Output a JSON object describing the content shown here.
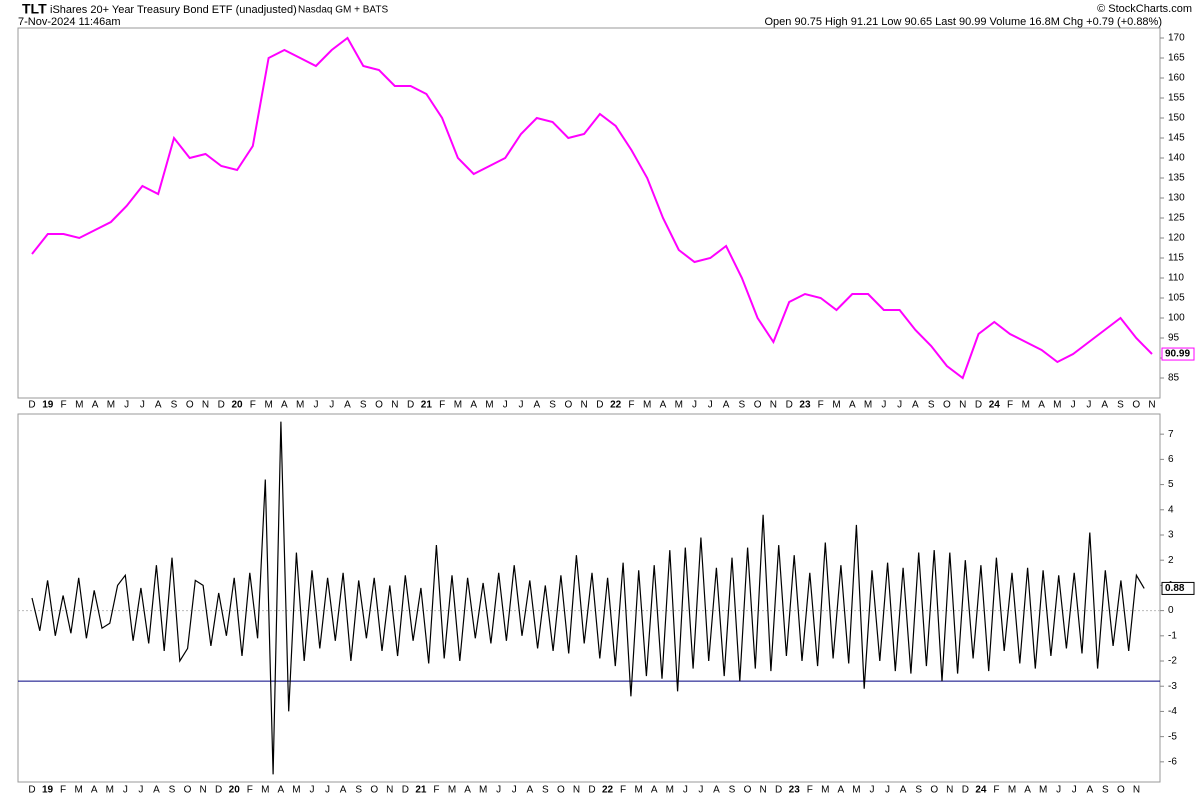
{
  "header": {
    "ticker": "TLT",
    "description": "iShares 20+ Year Treasury Bond ETF (unadjusted)",
    "exchange": "Nasdaq GM + BATS",
    "datetime": "7-Nov-2024 11:46am",
    "copyright": "© StockCharts.com",
    "quote": "Open 90.75  High 91.21  Low 90.65  Last 90.99  Volume 16.8M  Chg +0.79 (+0.88%)",
    "last": "90.99"
  },
  "chart_data": [
    {
      "type": "line",
      "color": "#ff00ff",
      "categories": [
        "D",
        "19",
        "F",
        "M",
        "A",
        "M",
        "J",
        "J",
        "A",
        "S",
        "O",
        "N",
        "D",
        "20",
        "F",
        "M",
        "A",
        "M",
        "J",
        "J",
        "A",
        "S",
        "O",
        "N",
        "D",
        "21",
        "F",
        "M",
        "A",
        "M",
        "J",
        "J",
        "A",
        "S",
        "O",
        "N",
        "D",
        "22",
        "F",
        "M",
        "A",
        "M",
        "J",
        "J",
        "A",
        "S",
        "O",
        "N",
        "D",
        "23",
        "F",
        "M",
        "A",
        "M",
        "J",
        "J",
        "A",
        "S",
        "O",
        "N",
        "D",
        "24",
        "F",
        "M",
        "A",
        "M",
        "J",
        "J",
        "A",
        "S",
        "O",
        "N"
      ],
      "values": [
        116,
        121,
        121,
        120,
        122,
        124,
        128,
        133,
        131,
        145,
        140,
        141,
        138,
        137,
        143,
        165,
        167,
        165,
        163,
        167,
        170,
        163,
        162,
        158,
        158,
        156,
        150,
        140,
        136,
        138,
        140,
        146,
        150,
        149,
        145,
        146,
        151,
        148,
        142,
        135,
        125,
        117,
        114,
        115,
        118,
        110,
        100,
        94,
        104,
        106,
        105,
        102,
        106,
        106,
        102,
        102,
        97,
        93,
        88,
        85,
        96,
        99,
        96,
        94,
        92,
        89,
        91,
        94,
        97,
        100,
        95,
        90.99
      ],
      "ylim": [
        80,
        172.5
      ],
      "yticks": [
        85,
        90,
        95,
        100,
        105,
        110,
        115,
        120,
        125,
        130,
        135,
        140,
        145,
        150,
        155,
        160,
        165,
        170
      ]
    },
    {
      "type": "line",
      "color": "#000000",
      "reference_line": -2.8,
      "reference_color": "#000080",
      "last_label": "0.88",
      "categories": [
        "D",
        null,
        "19",
        null,
        "F",
        null,
        "M",
        null,
        "A",
        null,
        "M",
        null,
        "J",
        null,
        "J",
        null,
        "A",
        null,
        "S",
        null,
        "O",
        null,
        "N",
        null,
        "D",
        null,
        "20",
        null,
        "F",
        null,
        "M",
        null,
        "A",
        null,
        "M",
        null,
        "J",
        null,
        "J",
        null,
        "A",
        null,
        "S",
        null,
        "O",
        null,
        "N",
        null,
        "D",
        null,
        "21",
        null,
        "F",
        null,
        "M",
        null,
        "A",
        null,
        "M",
        null,
        "J",
        null,
        "J",
        null,
        "A",
        null,
        "S",
        null,
        "O",
        null,
        "N",
        null,
        "D",
        null,
        "22",
        null,
        "F",
        null,
        "M",
        null,
        "A",
        null,
        "M",
        null,
        "J",
        null,
        "J",
        null,
        "A",
        null,
        "S",
        null,
        "O",
        null,
        "N",
        null,
        "D",
        null,
        "23",
        null,
        "F",
        null,
        "M",
        null,
        "A",
        null,
        "M",
        null,
        "J",
        null,
        "J",
        null,
        "A",
        null,
        "S",
        null,
        "O",
        null,
        "N",
        null,
        "D",
        null,
        "24",
        null,
        "F",
        null,
        "M",
        null,
        "A",
        null,
        "M",
        null,
        "J",
        null,
        "J",
        null,
        "A",
        null,
        "S",
        null,
        "O",
        null,
        "N",
        null
      ],
      "values": [
        0.5,
        -0.8,
        1.2,
        -1.0,
        0.6,
        -0.9,
        1.3,
        -1.1,
        0.8,
        -0.7,
        -0.5,
        1.0,
        1.4,
        -1.2,
        0.9,
        -1.3,
        1.8,
        -1.6,
        2.1,
        -2.0,
        -1.5,
        1.2,
        1.0,
        -1.4,
        0.7,
        -1.0,
        1.3,
        -1.8,
        1.5,
        -1.1,
        5.2,
        -6.5,
        7.5,
        -4.0,
        2.3,
        -2.0,
        1.6,
        -1.5,
        1.3,
        -1.2,
        1.5,
        -2.0,
        1.2,
        -1.1,
        1.3,
        -1.6,
        1.0,
        -1.8,
        1.4,
        -1.2,
        0.9,
        -2.1,
        2.6,
        -1.9,
        1.4,
        -2.0,
        1.3,
        -1.1,
        1.1,
        -1.3,
        1.5,
        -1.2,
        1.8,
        -1.0,
        1.2,
        -1.5,
        1.0,
        -1.6,
        1.4,
        -1.7,
        2.2,
        -1.3,
        1.5,
        -1.9,
        1.3,
        -2.2,
        1.9,
        -3.4,
        1.6,
        -2.6,
        1.8,
        -2.7,
        2.4,
        -3.2,
        2.5,
        -2.3,
        2.9,
        -2.0,
        1.7,
        -2.6,
        2.1,
        -2.8,
        2.5,
        -2.3,
        3.8,
        -2.4,
        2.6,
        -1.8,
        2.2,
        -2.0,
        1.5,
        -2.2,
        2.7,
        -1.9,
        1.8,
        -2.1,
        3.4,
        -3.1,
        1.6,
        -2.0,
        1.9,
        -2.4,
        1.7,
        -2.5,
        2.3,
        -2.2,
        2.4,
        -2.8,
        2.3,
        -2.5,
        2.0,
        -1.9,
        1.8,
        -2.4,
        2.1,
        -1.6,
        1.5,
        -2.1,
        1.7,
        -2.3,
        1.6,
        -1.8,
        1.4,
        -1.5,
        1.5,
        -1.7,
        3.1,
        -2.3,
        1.6,
        -1.4,
        1.2,
        -1.6,
        1.4,
        0.88
      ],
      "ylim": [
        -6.8,
        7.8
      ],
      "yticks": [
        -6,
        -5,
        -4,
        -3,
        -2,
        -1,
        0,
        1,
        2,
        3,
        4,
        5,
        6,
        7
      ]
    }
  ]
}
